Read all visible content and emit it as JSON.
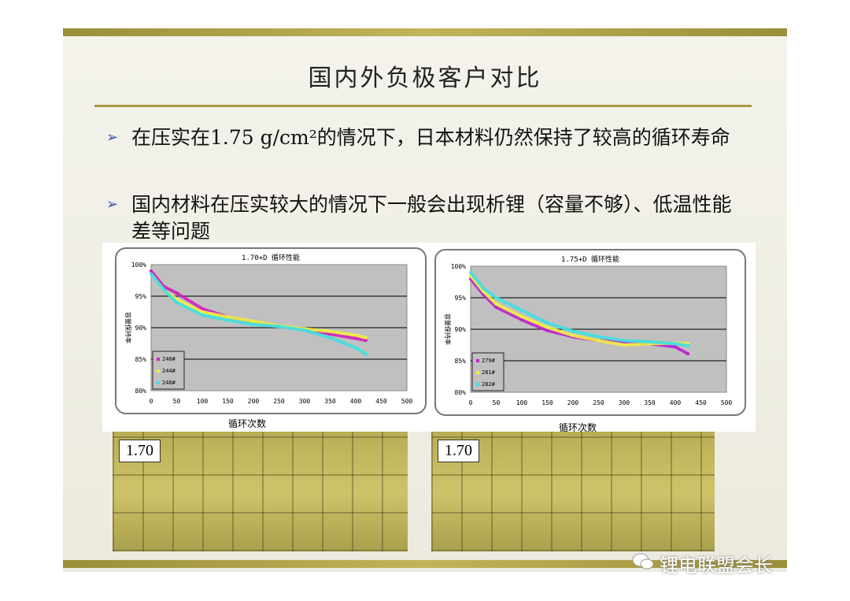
{
  "slide": {
    "title": "国内外负极客户对比",
    "bullets": [
      "在压实在1.75 g/cm²的情况下，日本材料仍然保持了较高的循环寿命",
      "国内材料在压实较大的情况下一般会出现析锂（容量不够）、低温性能差等问题"
    ],
    "bullet_icon": "arrow-bullet-icon",
    "photos": [
      {
        "label": "1.70"
      },
      {
        "label": "1.70"
      }
    ],
    "watermark": "锂电联盟会长",
    "colors": {
      "accent": "#a89a44",
      "plot_bg": "#c0c0c0"
    }
  },
  "chart_data": [
    {
      "type": "scatter",
      "title": "1.70+D 循环性能",
      "xlabel": "循环次数",
      "ylabel": "容量保持率",
      "xlim": [
        0,
        500
      ],
      "ylim": [
        80,
        100
      ],
      "xticks": [
        "0",
        "50",
        "100",
        "150",
        "200",
        "250",
        "300",
        "350",
        "400",
        "450",
        "500"
      ],
      "yticks": [
        "80%",
        "85%",
        "90%",
        "95%",
        "100%"
      ],
      "grid": "horizontal",
      "legend": "bottom-left",
      "series": [
        {
          "name": "240#",
          "color": "#d020c0",
          "x": [
            0,
            25,
            50,
            100,
            150,
            200,
            250,
            300,
            350,
            400,
            420
          ],
          "y": [
            99,
            96.5,
            95.5,
            93,
            91.7,
            90.8,
            90.2,
            89.7,
            89,
            88.3,
            88
          ]
        },
        {
          "name": "244#",
          "color": "#f0f040",
          "x": [
            0,
            25,
            50,
            100,
            150,
            200,
            250,
            300,
            350,
            400,
            420
          ],
          "y": [
            98.5,
            96,
            94.5,
            92.5,
            91.7,
            91,
            90.3,
            89.8,
            89.4,
            88.8,
            88.4
          ]
        },
        {
          "name": "248#",
          "color": "#40e0e0",
          "x": [
            0,
            25,
            50,
            100,
            150,
            200,
            250,
            300,
            350,
            400,
            420
          ],
          "y": [
            98.5,
            96,
            94,
            92,
            91.2,
            90.5,
            90.2,
            89.6,
            88.4,
            86.8,
            85.8
          ]
        }
      ]
    },
    {
      "type": "scatter",
      "title": "1.75+D 循环性能",
      "xlabel": "循环次数",
      "ylabel": "容量保持率",
      "xlim": [
        0,
        500
      ],
      "ylim": [
        80,
        100
      ],
      "xticks": [
        "0",
        "50",
        "100",
        "150",
        "200",
        "250",
        "300",
        "350",
        "400",
        "450",
        "500"
      ],
      "yticks": [
        "80%",
        "85%",
        "90%",
        "95%",
        "100%"
      ],
      "grid": "horizontal",
      "legend": "bottom-left",
      "series": [
        {
          "name": "279#",
          "color": "#c020d0",
          "x": [
            0,
            25,
            50,
            100,
            150,
            200,
            250,
            300,
            350,
            400,
            425
          ],
          "y": [
            98,
            95.5,
            93.5,
            91.5,
            89.8,
            88.8,
            88.2,
            88,
            87.7,
            87.2,
            86.1
          ]
        },
        {
          "name": "281#",
          "color": "#f0f040",
          "x": [
            0,
            25,
            50,
            100,
            150,
            200,
            250,
            300,
            350,
            400,
            425
          ],
          "y": [
            98.5,
            96,
            94,
            92,
            90.3,
            89,
            88.2,
            87.5,
            87.7,
            87.8,
            87.7
          ]
        },
        {
          "name": "282#",
          "color": "#40e0e0",
          "x": [
            0,
            25,
            50,
            100,
            150,
            200,
            250,
            300,
            350,
            400,
            425
          ],
          "y": [
            99,
            96.5,
            95,
            93,
            91,
            89.7,
            88.8,
            88.2,
            88,
            87.7,
            87.4
          ]
        }
      ]
    }
  ]
}
